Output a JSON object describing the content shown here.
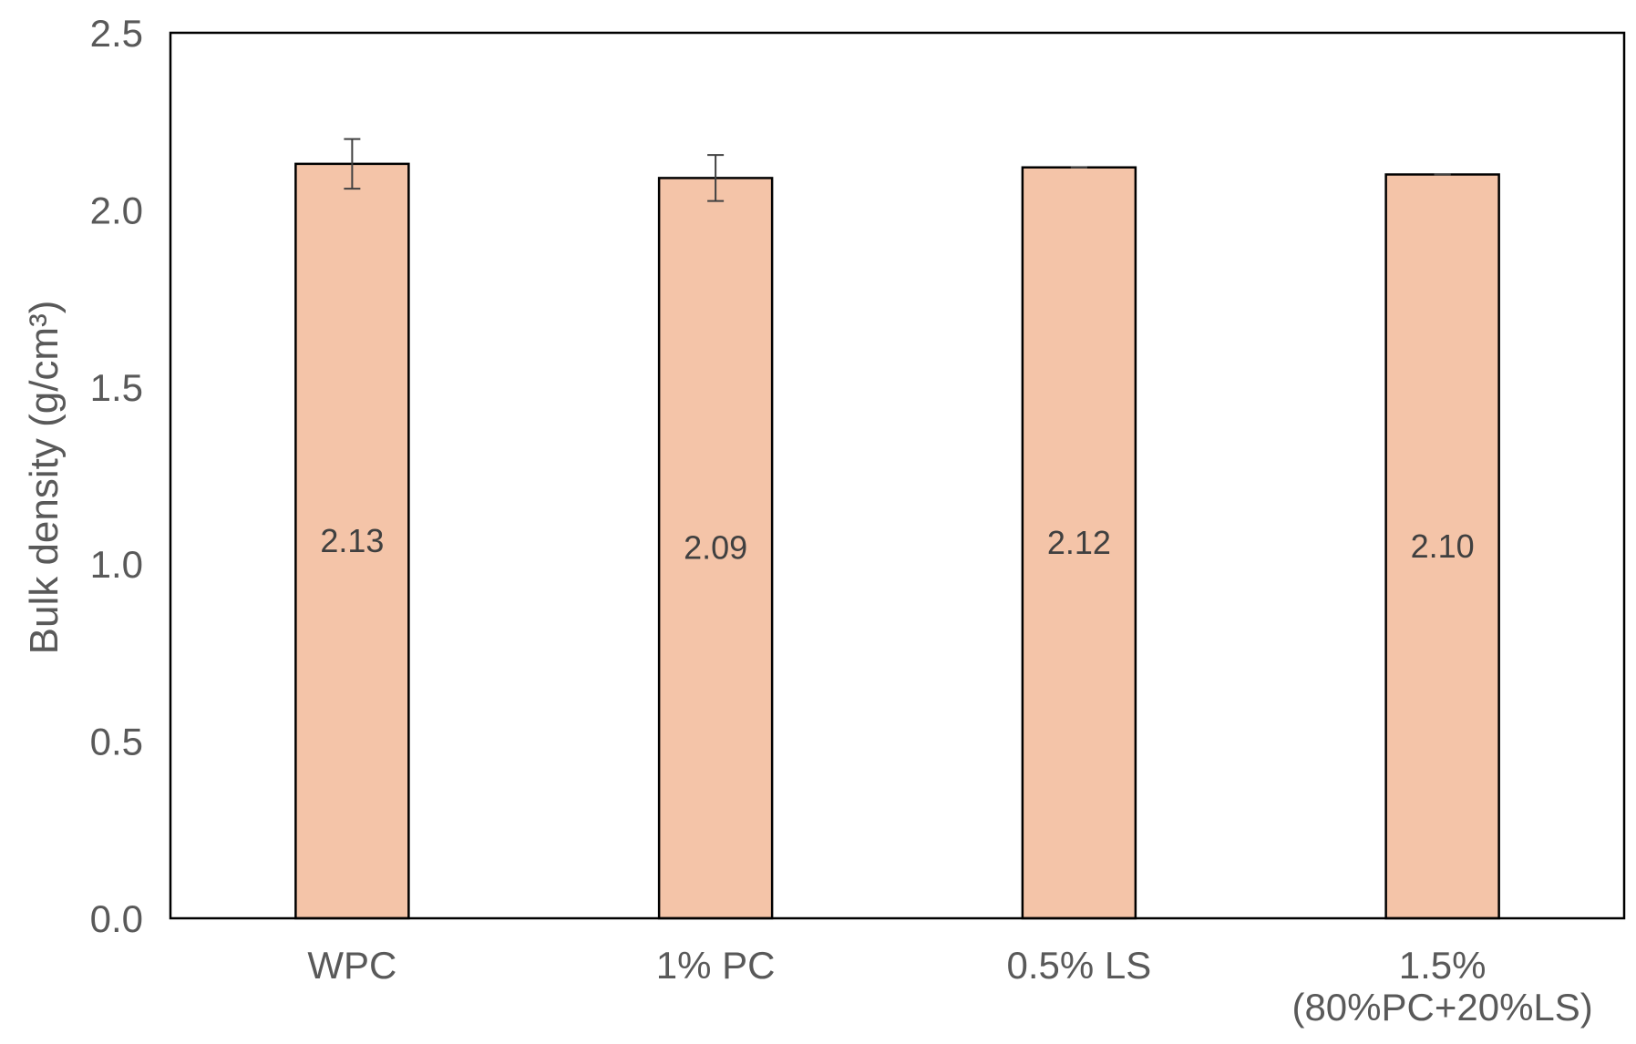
{
  "chart_data": {
    "type": "bar",
    "title": "",
    "xlabel": "",
    "ylabel": "Bulk density (g/cm³)",
    "ylim": [
      0,
      2.5
    ],
    "yticks": [
      "0.0",
      "0.5",
      "1.0",
      "1.5",
      "2.0",
      "2.5"
    ],
    "grid": false,
    "legend": "none",
    "categories": [
      [
        "WPC"
      ],
      [
        "1% PC"
      ],
      [
        "0.5% LS"
      ],
      [
        "1.5%",
        "(80%PC+20%LS)"
      ]
    ],
    "values": [
      2.13,
      2.09,
      2.12,
      2.1
    ],
    "data_labels": [
      "2.13",
      "2.09",
      "2.12",
      "2.10"
    ],
    "error": [
      0.07,
      0.065,
      0.0,
      0.0
    ],
    "colors": {
      "bar_fill": "#f4c4a8",
      "bar_stroke": "#000000",
      "error_bar": "#404040",
      "frame": "#000000"
    }
  }
}
